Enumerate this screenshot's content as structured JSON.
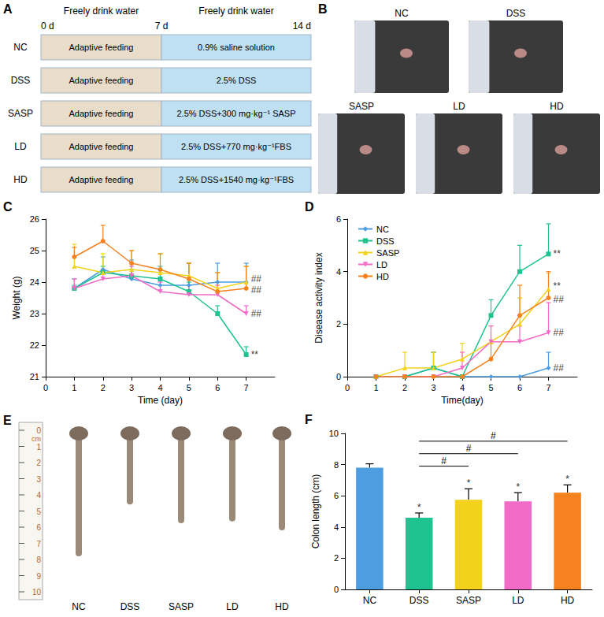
{
  "panel_A": {
    "panel": "A",
    "headers": [
      "Freely drink water",
      "Freely drink water"
    ],
    "days": [
      "0 d",
      "7 d",
      "14 d"
    ],
    "rows": [
      {
        "group": "NC",
        "phase1": "Adaptive feeding",
        "phase2": "0.9% saline solution"
      },
      {
        "group": "DSS",
        "phase1": "Adaptive feeding",
        "phase2": "2.5% DSS"
      },
      {
        "group": "SASP",
        "phase1": "Adaptive feeding",
        "phase2": "2.5% DSS+300 mg·kg⁻¹ SASP"
      },
      {
        "group": "LD",
        "phase1": "Adaptive feeding",
        "phase2": "2.5% DSS+770 mg·kg⁻¹FBS"
      },
      {
        "group": "HD",
        "phase1": "Adaptive feeding",
        "phase2": "2.5% DSS+1540 mg·kg⁻¹FBS"
      }
    ]
  },
  "panel_B": {
    "panel": "B",
    "photos": [
      "NC",
      "DSS",
      "SASP",
      "LD",
      "HD"
    ]
  },
  "panel_E": {
    "panel": "E",
    "ruler_unit": "cm",
    "ruler_ticks": [
      0,
      1,
      2,
      3,
      4,
      5,
      6,
      7,
      8,
      9,
      10
    ],
    "photos": [
      "NC",
      "DSS",
      "SASP",
      "LD",
      "HD"
    ]
  },
  "chart_data": [
    {
      "panel": "C",
      "type": "line",
      "xlabel": "Time (day)",
      "ylabel": "Weight (g)",
      "x": [
        1,
        2,
        3,
        4,
        5,
        6,
        7
      ],
      "xlim": [
        0,
        8
      ],
      "xticks": [
        0,
        1,
        2,
        3,
        4,
        5,
        6,
        7
      ],
      "ylim": [
        21,
        26
      ],
      "yticks": [
        21,
        22,
        23,
        24,
        25,
        26
      ],
      "grid": false,
      "series": [
        {
          "name": "NC",
          "color": "#4d9de0",
          "marker": "diamond",
          "values": [
            23.8,
            24.4,
            24.1,
            23.9,
            23.9,
            24.0,
            24.0
          ],
          "errors": [
            0.3,
            0.4,
            0.6,
            0.6,
            0.7,
            0.6,
            0.6
          ]
        },
        {
          "name": "DSS",
          "color": "#1fc38f",
          "marker": "square",
          "values": [
            23.8,
            24.3,
            24.2,
            24.1,
            23.7,
            23.0,
            21.7
          ],
          "errors": [
            0.1,
            0.2,
            0.2,
            0.3,
            0.3,
            0.25,
            0.25
          ]
        },
        {
          "name": "SASP",
          "color": "#f2d21b",
          "marker": "triangle",
          "values": [
            24.5,
            24.3,
            24.4,
            24.3,
            24.2,
            23.8,
            24.0
          ],
          "errors": [
            0.7,
            0.6,
            0.6,
            0.6,
            0.4,
            0.5,
            0.5
          ]
        },
        {
          "name": "LD",
          "color": "#f26bc7",
          "marker": "triangle-down",
          "values": [
            23.8,
            24.1,
            24.2,
            23.7,
            23.6,
            23.6,
            23.0
          ],
          "errors": [
            0.3,
            0.3,
            0.3,
            0.3,
            0.3,
            0.3,
            0.25
          ]
        },
        {
          "name": "HD",
          "color": "#f5821f",
          "marker": "circle",
          "values": [
            24.8,
            25.3,
            24.6,
            24.4,
            24.1,
            23.7,
            23.8
          ],
          "errors": [
            0.3,
            0.5,
            0.4,
            0.5,
            0.5,
            0.6,
            0.7
          ]
        }
      ],
      "annotations": [
        {
          "x": 7,
          "y": 21.7,
          "text": "**"
        },
        {
          "x": 7,
          "y": 24.1,
          "text": "##"
        },
        {
          "x": 7,
          "y": 23.75,
          "text": "##"
        },
        {
          "x": 7,
          "y": 23.0,
          "text": "##"
        }
      ]
    },
    {
      "panel": "D",
      "type": "line",
      "xlabel": "Time(day)",
      "ylabel": "Disease activity index",
      "x": [
        1,
        2,
        3,
        4,
        5,
        6,
        7
      ],
      "xlim": [
        0,
        8
      ],
      "xticks": [
        0,
        1,
        2,
        3,
        4,
        5,
        6,
        7
      ],
      "ylim": [
        0,
        6
      ],
      "yticks": [
        0,
        2,
        4,
        6
      ],
      "grid": false,
      "legend": "top-left",
      "series": [
        {
          "name": "NC",
          "color": "#4d9de0",
          "marker": "diamond",
          "values": [
            0,
            0,
            0.33,
            0,
            0,
            0,
            0.33
          ],
          "errors": [
            0,
            0,
            0.6,
            0,
            0,
            0,
            0.6
          ]
        },
        {
          "name": "DSS",
          "color": "#1fc38f",
          "marker": "square",
          "values": [
            0,
            0,
            0.33,
            0,
            2.33,
            4.0,
            4.67
          ],
          "errors": [
            0,
            0,
            0.6,
            0,
            0.6,
            1.0,
            1.15
          ]
        },
        {
          "name": "SASP",
          "color": "#f2d21b",
          "marker": "triangle",
          "values": [
            0,
            0.33,
            0.33,
            0.67,
            1.33,
            2.0,
            3.33
          ],
          "errors": [
            0,
            0.6,
            0.6,
            0.6,
            0.6,
            1.0,
            0.6
          ]
        },
        {
          "name": "LD",
          "color": "#f26bc7",
          "marker": "triangle-down",
          "values": [
            0,
            0,
            0,
            0.33,
            1.33,
            1.33,
            1.67
          ],
          "errors": [
            0,
            0,
            0,
            0.6,
            0.6,
            0.6,
            1.15
          ]
        },
        {
          "name": "HD",
          "color": "#f5821f",
          "marker": "circle",
          "values": [
            0,
            0,
            0,
            0,
            0.67,
            2.33,
            3.0
          ],
          "errors": [
            0,
            0,
            0,
            0,
            0.6,
            1.15,
            1.0
          ]
        }
      ],
      "annotations": [
        {
          "x": 7,
          "y": 4.67,
          "text": "**"
        },
        {
          "x": 7,
          "y": 3.45,
          "text": "**"
        },
        {
          "x": 7,
          "y": 2.95,
          "text": "##"
        },
        {
          "x": 7,
          "y": 1.67,
          "text": "##"
        },
        {
          "x": 7,
          "y": 0.33,
          "text": "##"
        }
      ]
    },
    {
      "panel": "F",
      "type": "bar",
      "ylabel": "Colon length (cm)",
      "categories": [
        "NC",
        "DSS",
        "SASP",
        "LD",
        "HD"
      ],
      "values": [
        7.8,
        4.6,
        5.75,
        5.65,
        6.2
      ],
      "errors": [
        0.25,
        0.3,
        0.7,
        0.55,
        0.5
      ],
      "colors": [
        "#4d9de0",
        "#1fc38f",
        "#f2d21b",
        "#f26bc7",
        "#f5821f"
      ],
      "ylim": [
        0,
        10
      ],
      "yticks": [
        0,
        2,
        4,
        6,
        8,
        10
      ],
      "grid": false,
      "annotations": [
        {
          "category": "DSS",
          "text": "*"
        },
        {
          "category": "SASP",
          "text": "*"
        },
        {
          "category": "LD",
          "text": "*"
        },
        {
          "category": "HD",
          "text": "*"
        }
      ],
      "comparisons": [
        {
          "from": "DSS",
          "to": "HD",
          "y": 9.5,
          "label": "#"
        },
        {
          "from": "DSS",
          "to": "LD",
          "y": 8.7,
          "label": "#"
        },
        {
          "from": "DSS",
          "to": "SASP",
          "y": 7.9,
          "label": "#"
        }
      ]
    }
  ]
}
